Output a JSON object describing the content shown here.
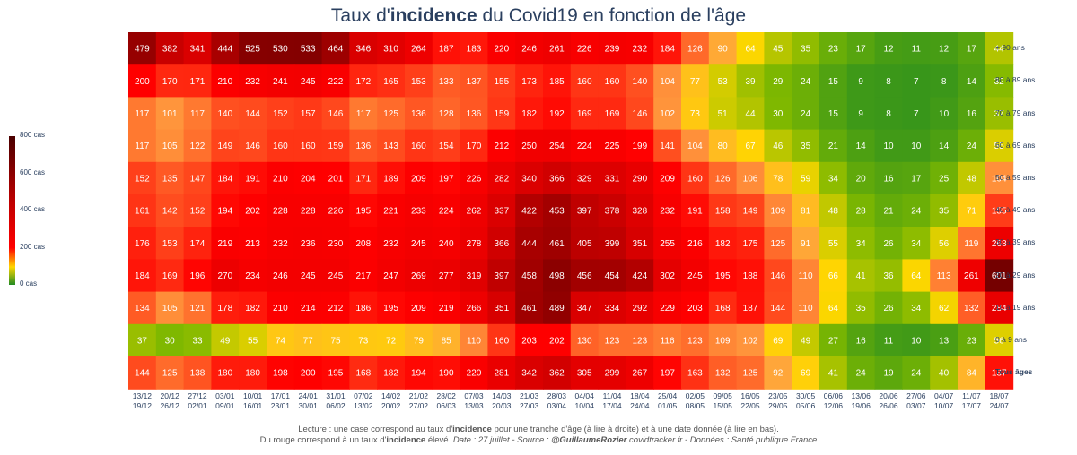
{
  "chart_data": {
    "type": "heatmap",
    "title_prefix": "Taux d'",
    "title_bold": "incidence",
    "title_suffix": " du Covid19 en fonction de l'âge",
    "x_labels_start": [
      "13/12",
      "20/12",
      "27/12",
      "03/01",
      "10/01",
      "17/01",
      "24/01",
      "31/01",
      "07/02",
      "14/02",
      "21/02",
      "28/02",
      "07/03",
      "14/03",
      "21/03",
      "28/03",
      "04/04",
      "11/04",
      "18/04",
      "25/04",
      "02/05",
      "09/05",
      "16/05",
      "23/05",
      "30/05",
      "06/06",
      "13/06",
      "20/06",
      "27/06",
      "04/07",
      "11/07",
      "18/07"
    ],
    "x_labels_end": [
      "19/12",
      "26/12",
      "02/01",
      "09/01",
      "16/01",
      "23/01",
      "30/01",
      "06/02",
      "13/02",
      "20/02",
      "27/02",
      "06/03",
      "13/03",
      "20/03",
      "27/03",
      "03/04",
      "10/04",
      "17/04",
      "24/04",
      "01/05",
      "08/05",
      "15/05",
      "22/05",
      "29/05",
      "05/06",
      "12/06",
      "19/06",
      "26/06",
      "03/07",
      "10/07",
      "17/07",
      "24/07"
    ],
    "y_labels": [
      "+ 90 ans",
      "80 à 89 ans",
      "70 à 79 ans",
      "60 à 69 ans",
      "50 à 59 ans",
      "40 à 49 ans",
      "30 à 39 ans",
      "20 à 29 ans",
      "10 à 19 ans",
      "0 à 9 ans",
      "Tous âges"
    ],
    "values": [
      [
        479,
        382,
        341,
        444,
        525,
        530,
        533,
        464,
        346,
        310,
        264,
        187,
        183,
        220,
        246,
        261,
        226,
        239,
        232,
        184,
        126,
        90,
        64,
        45,
        35,
        23,
        17,
        12,
        11,
        12,
        17,
        44
      ],
      [
        200,
        170,
        171,
        210,
        232,
        241,
        245,
        222,
        172,
        165,
        153,
        133,
        137,
        155,
        173,
        185,
        160,
        160,
        140,
        104,
        77,
        53,
        39,
        29,
        24,
        15,
        9,
        8,
        7,
        8,
        14,
        32
      ],
      [
        117,
        101,
        117,
        140,
        144,
        152,
        157,
        146,
        117,
        125,
        136,
        128,
        136,
        159,
        182,
        192,
        169,
        169,
        146,
        102,
        73,
        51,
        44,
        30,
        24,
        15,
        9,
        8,
        7,
        10,
        16,
        37
      ],
      [
        117,
        105,
        122,
        149,
        146,
        160,
        160,
        159,
        136,
        143,
        160,
        154,
        170,
        212,
        250,
        254,
        224,
        225,
        199,
        141,
        104,
        80,
        67,
        46,
        35,
        21,
        14,
        10,
        10,
        14,
        24,
        55
      ],
      [
        152,
        135,
        147,
        184,
        191,
        210,
        204,
        201,
        171,
        189,
        209,
        197,
        226,
        282,
        340,
        366,
        329,
        331,
        290,
        209,
        160,
        126,
        106,
        78,
        59,
        34,
        20,
        16,
        17,
        25,
        48,
        104
      ],
      [
        161,
        142,
        152,
        194,
        202,
        228,
        228,
        226,
        195,
        221,
        233,
        224,
        262,
        337,
        422,
        453,
        397,
        378,
        328,
        232,
        191,
        158,
        149,
        109,
        81,
        48,
        28,
        21,
        24,
        35,
        71,
        155
      ],
      [
        176,
        153,
        174,
        219,
        213,
        232,
        236,
        230,
        208,
        232,
        245,
        240,
        278,
        366,
        444,
        461,
        405,
        399,
        351,
        255,
        216,
        182,
        175,
        125,
        91,
        55,
        34,
        26,
        34,
        56,
        119,
        268
      ],
      [
        184,
        169,
        196,
        270,
        234,
        246,
        245,
        245,
        217,
        247,
        269,
        277,
        319,
        397,
        458,
        498,
        456,
        454,
        424,
        302,
        245,
        195,
        188,
        146,
        110,
        66,
        41,
        36,
        64,
        113,
        261,
        601
      ],
      [
        134,
        105,
        121,
        178,
        182,
        210,
        214,
        212,
        186,
        195,
        209,
        219,
        266,
        351,
        461,
        489,
        347,
        334,
        292,
        229,
        203,
        168,
        187,
        144,
        110,
        64,
        35,
        26,
        34,
        62,
        132,
        284
      ],
      [
        37,
        30,
        33,
        49,
        55,
        74,
        77,
        75,
        73,
        72,
        79,
        85,
        110,
        160,
        203,
        202,
        130,
        123,
        123,
        116,
        123,
        109,
        102,
        69,
        49,
        27,
        16,
        11,
        10,
        13,
        23,
        56
      ],
      [
        144,
        125,
        138,
        180,
        180,
        198,
        200,
        195,
        168,
        182,
        194,
        190,
        220,
        281,
        342,
        362,
        305,
        299,
        267,
        197,
        163,
        132,
        125,
        92,
        69,
        41,
        24,
        19,
        24,
        40,
        84,
        187
      ]
    ],
    "zmin": 0,
    "zmax": 800,
    "colorbar_ticks": [
      "800 cas",
      "600 cas",
      "400 cas",
      "200 cas",
      "0 cas"
    ],
    "colorbar_values": [
      800,
      600,
      400,
      200,
      0
    ],
    "colors": {
      "scale": [
        "#228b22",
        "#ffd700",
        "#ff0000",
        "#8b0000",
        "#4a0000"
      ]
    }
  },
  "footer": {
    "line1_pre": "Lecture : une case correspond au taux d'",
    "line1_bold": "incidence",
    "line1_post": " pour une tranche d'âge (à lire à droite) et à une date donnée (à lire en bas).",
    "line2_pre": "Du rouge correspond à un taux d'",
    "line2_bold": "incidence",
    "line2_mid": " élevé.  ",
    "line2_italic": "Date : 27 juillet - Source : ",
    "line2_author": "@GuillaumeRozier",
    "line2_italic2": " covidtracker.fr - Données : Santé publique France"
  }
}
